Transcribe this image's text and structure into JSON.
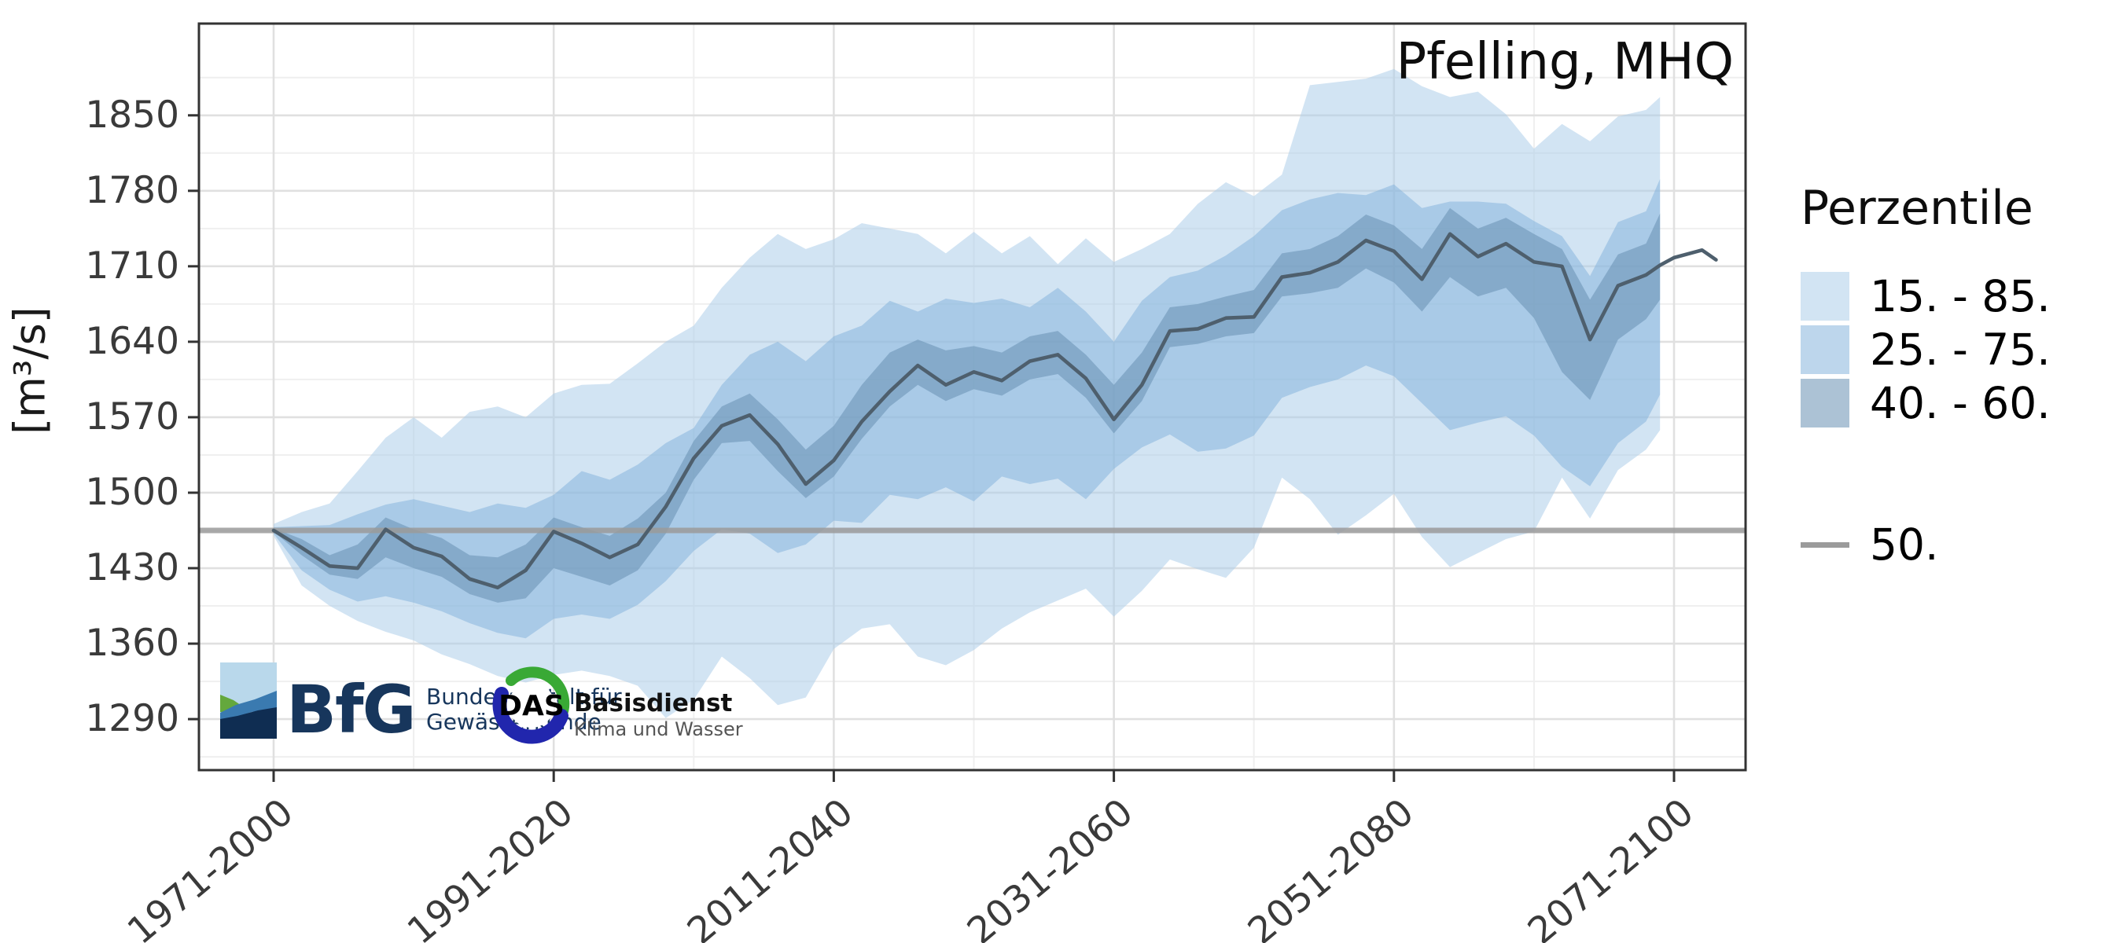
{
  "header": {
    "title": "Pfelling, MHQ"
  },
  "axes": {
    "y_label": "[m³/s]",
    "y_tick_labels": [
      "1850",
      "1780",
      "1710",
      "1640",
      "1570",
      "1500",
      "1430",
      "1360",
      "1290"
    ],
    "x_tick_labels": [
      "1971-2000",
      "1991-2020",
      "2011-2040",
      "2031-2060",
      "2051-2080",
      "2071-2100"
    ]
  },
  "legend": {
    "title": "Perzentile",
    "items": [
      {
        "label": "15. - 85."
      },
      {
        "label": "25. - 75."
      },
      {
        "label": "40. - 60."
      }
    ],
    "line_label": "50."
  },
  "logos": {
    "bfg": {
      "abbr": "BfG",
      "line1": "Bundesanstalt für",
      "line2": "Gewässerkunde"
    },
    "das": {
      "abbr": "DAS",
      "line1": "Basisdienst",
      "line2": "Klima und Wasser"
    }
  },
  "chart_data": {
    "type": "area",
    "title": "Pfelling, MHQ",
    "xlabel": "",
    "ylabel": "[m³/s]",
    "ylim": [
      1255,
      1905
    ],
    "grid": true,
    "legend_position": "right",
    "y_ticks": [
      1290,
      1360,
      1430,
      1500,
      1570,
      1640,
      1710,
      1780,
      1850
    ],
    "y_minor_ticks": [
      1255,
      1325,
      1395,
      1465,
      1535,
      1605,
      1675,
      1745,
      1815,
      1885
    ],
    "x_ticks": [
      {
        "year": 2000,
        "label": "1971-2000"
      },
      {
        "year": 2020,
        "label": "1991-2020"
      },
      {
        "year": 2040,
        "label": "2011-2040"
      },
      {
        "year": 2060,
        "label": "2031-2060"
      },
      {
        "year": 2080,
        "label": "2051-2080"
      },
      {
        "year": 2100,
        "label": "2071-2100"
      }
    ],
    "x_minor_years": [
      2010,
      2030,
      2050,
      2070,
      2090
    ],
    "reference": {
      "label": "50.",
      "value": 1465,
      "color": "#9b9b9b"
    },
    "colors": {
      "band_15_85": "rgba(173,205,233,0.55)",
      "band_25_75": "rgba(135,181,221,0.55)",
      "band_40_60": "rgba(103,143,179,0.55)",
      "median_line": "#4e5f6d",
      "grid_major": "#e0e0e0",
      "grid_minor": "#efefef",
      "panel_border": "#333333"
    },
    "band_years": [
      2000,
      2002,
      2004,
      2006,
      2008,
      2010,
      2012,
      2014,
      2016,
      2018,
      2020,
      2022,
      2024,
      2026,
      2028,
      2030,
      2032,
      2034,
      2036,
      2038,
      2040,
      2042,
      2044,
      2046,
      2048,
      2050,
      2052,
      2054,
      2056,
      2058,
      2060,
      2062,
      2064,
      2066,
      2068,
      2070,
      2072,
      2074,
      2076,
      2078,
      2080,
      2082,
      2084,
      2086,
      2088,
      2090,
      2092,
      2094,
      2096,
      2098,
      2099
    ],
    "p15": [
      1460,
      1414,
      1395,
      1381,
      1371,
      1363,
      1350,
      1341,
      1330,
      1324,
      1331,
      1335,
      1330,
      1321,
      1291,
      1308,
      1348,
      1328,
      1303,
      1310,
      1355,
      1374,
      1378,
      1348,
      1340,
      1354,
      1374,
      1389,
      1400,
      1411,
      1385,
      1409,
      1438,
      1429,
      1421,
      1449,
      1514,
      1494,
      1461,
      1479,
      1499,
      1459,
      1431,
      1444,
      1457,
      1464,
      1514,
      1476,
      1521,
      1540,
      1558
    ],
    "p25": [
      1462,
      1428,
      1410,
      1399,
      1404,
      1398,
      1390,
      1379,
      1370,
      1365,
      1383,
      1387,
      1383,
      1396,
      1418,
      1446,
      1466,
      1462,
      1444,
      1452,
      1474,
      1472,
      1498,
      1494,
      1505,
      1492,
      1515,
      1508,
      1513,
      1494,
      1522,
      1542,
      1554,
      1538,
      1541,
      1553,
      1588,
      1598,
      1605,
      1618,
      1608,
      1583,
      1558,
      1565,
      1571,
      1553,
      1524,
      1506,
      1546,
      1566,
      1591
    ],
    "p40": [
      1464,
      1442,
      1424,
      1420,
      1440,
      1430,
      1422,
      1406,
      1398,
      1402,
      1430,
      1422,
      1414,
      1428,
      1462,
      1512,
      1546,
      1548,
      1520,
      1495,
      1515,
      1550,
      1580,
      1600,
      1585,
      1596,
      1590,
      1605,
      1610,
      1588,
      1555,
      1585,
      1635,
      1638,
      1645,
      1648,
      1682,
      1685,
      1690,
      1708,
      1695,
      1668,
      1700,
      1682,
      1690,
      1662,
      1612,
      1586,
      1642,
      1661,
      1679
    ],
    "p60": [
      1467,
      1457,
      1442,
      1452,
      1477,
      1466,
      1458,
      1442,
      1440,
      1452,
      1477,
      1468,
      1460,
      1476,
      1500,
      1548,
      1580,
      1592,
      1568,
      1540,
      1562,
      1600,
      1630,
      1642,
      1632,
      1636,
      1630,
      1645,
      1650,
      1628,
      1600,
      1630,
      1672,
      1675,
      1682,
      1688,
      1722,
      1726,
      1738,
      1758,
      1748,
      1726,
      1764,
      1745,
      1755,
      1740,
      1726,
      1679,
      1721,
      1731,
      1759
    ],
    "p75": [
      1468,
      1469,
      1470,
      1480,
      1489,
      1494,
      1488,
      1482,
      1490,
      1486,
      1498,
      1520,
      1512,
      1526,
      1546,
      1560,
      1600,
      1628,
      1640,
      1622,
      1645,
      1655,
      1678,
      1668,
      1680,
      1676,
      1680,
      1672,
      1690,
      1668,
      1640,
      1678,
      1700,
      1706,
      1720,
      1738,
      1762,
      1772,
      1778,
      1776,
      1786,
      1764,
      1770,
      1770,
      1768,
      1752,
      1738,
      1701,
      1751,
      1761,
      1791
    ],
    "p85": [
      1471,
      1482,
      1490,
      1520,
      1551,
      1570,
      1551,
      1575,
      1580,
      1570,
      1592,
      1600,
      1601,
      1620,
      1640,
      1655,
      1690,
      1718,
      1740,
      1726,
      1735,
      1750,
      1745,
      1740,
      1722,
      1742,
      1722,
      1738,
      1712,
      1736,
      1714,
      1726,
      1740,
      1768,
      1788,
      1775,
      1795,
      1878,
      1881,
      1884,
      1893,
      1877,
      1867,
      1872,
      1851,
      1819,
      1842,
      1826,
      1849,
      1855,
      1867
    ],
    "median_years": [
      2000,
      2002,
      2004,
      2006,
      2008,
      2010,
      2012,
      2014,
      2016,
      2018,
      2020,
      2022,
      2024,
      2026,
      2028,
      2030,
      2032,
      2034,
      2036,
      2038,
      2040,
      2042,
      2044,
      2046,
      2048,
      2050,
      2052,
      2054,
      2056,
      2058,
      2060,
      2062,
      2064,
      2066,
      2068,
      2070,
      2072,
      2074,
      2076,
      2078,
      2080,
      2082,
      2084,
      2086,
      2088,
      2090,
      2092,
      2094,
      2096,
      2098,
      2099,
      2100,
      2102,
      2103
    ],
    "median": [
      1465,
      1449,
      1432,
      1430,
      1466,
      1449,
      1441,
      1420,
      1412,
      1428,
      1464,
      1453,
      1440,
      1452,
      1487,
      1532,
      1562,
      1572,
      1545,
      1508,
      1530,
      1566,
      1594,
      1618,
      1600,
      1612,
      1604,
      1622,
      1628,
      1606,
      1568,
      1600,
      1650,
      1652,
      1662,
      1663,
      1700,
      1704,
      1714,
      1734,
      1724,
      1698,
      1740,
      1719,
      1731,
      1714,
      1710,
      1642,
      1692,
      1702,
      1711,
      1718,
      1725,
      1716
    ]
  }
}
